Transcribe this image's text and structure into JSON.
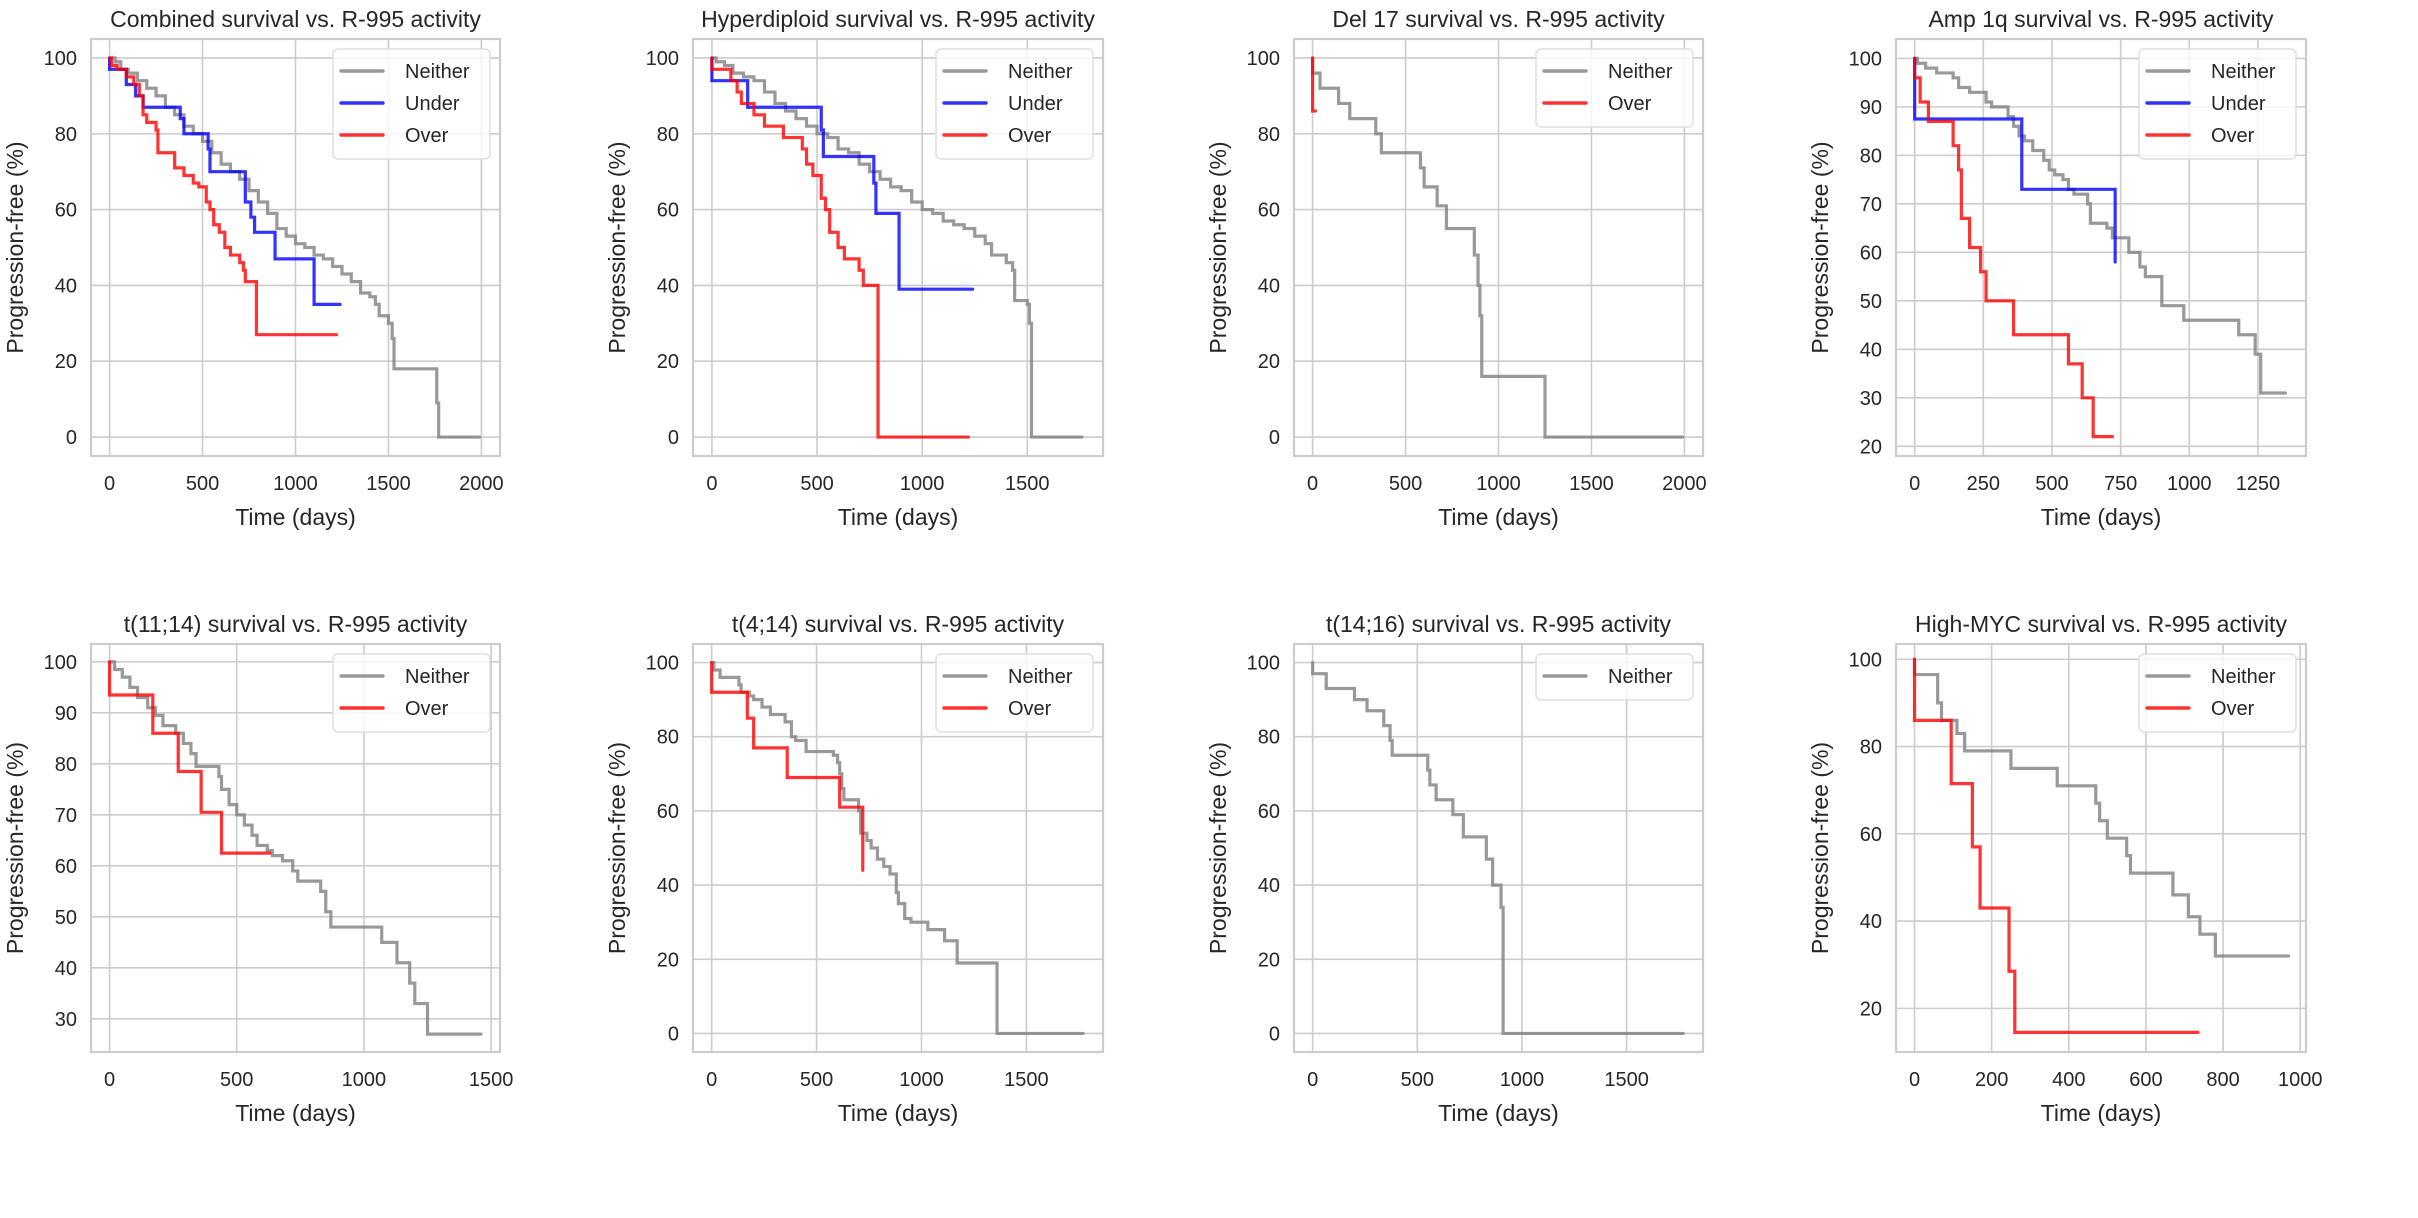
{
  "figure": {
    "series_colors": {
      "Neither": "#808080",
      "Under": "#0000ff",
      "Over": "#ff0000"
    }
  },
  "chart_data": [
    {
      "type": "line",
      "title": "Combined survival vs. R-995 activity",
      "xlabel": "Time (days)",
      "ylabel": "Progression-free (%)",
      "xlim": [
        -100,
        2100
      ],
      "ylim": [
        -5,
        105
      ],
      "xticks": [
        0,
        500,
        1000,
        1500,
        2000
      ],
      "yticks": [
        0,
        20,
        40,
        60,
        80,
        100
      ],
      "grid": true,
      "legend": "top-right",
      "series": [
        {
          "name": "Neither",
          "x": [
            0,
            30,
            60,
            100,
            150,
            200,
            250,
            300,
            350,
            400,
            450,
            500,
            550,
            600,
            650,
            700,
            750,
            800,
            850,
            900,
            950,
            1000,
            1050,
            1100,
            1150,
            1200,
            1250,
            1300,
            1350,
            1400,
            1430,
            1450,
            1500,
            1520,
            1530,
            1760,
            1770,
            1990
          ],
          "y": [
            100,
            99,
            97,
            96,
            94,
            92,
            90,
            87,
            85,
            82,
            80,
            78,
            75,
            72,
            70,
            68,
            65,
            62,
            59,
            55,
            53,
            51,
            50,
            48,
            47,
            45,
            43,
            41,
            38,
            37,
            35,
            32,
            30,
            26,
            18,
            9,
            0,
            0
          ]
        },
        {
          "name": "Under",
          "x": [
            0,
            0,
            90,
            140,
            180,
            380,
            400,
            530,
            540,
            730,
            760,
            780,
            890,
            1100,
            1240
          ],
          "y": [
            100,
            97,
            93,
            90,
            87,
            84,
            80,
            76,
            70,
            62,
            58,
            54,
            47,
            35,
            35
          ]
        },
        {
          "name": "Over",
          "x": [
            0,
            10,
            40,
            90,
            130,
            160,
            180,
            200,
            250,
            260,
            350,
            400,
            450,
            480,
            520,
            540,
            560,
            590,
            620,
            650,
            700,
            720,
            730,
            790,
            1220
          ],
          "y": [
            100,
            98,
            97,
            95,
            93,
            90,
            85,
            83,
            81,
            75,
            71,
            69,
            67,
            66,
            62,
            60,
            56,
            54,
            50,
            48,
            46,
            44,
            41,
            27,
            27
          ]
        }
      ]
    },
    {
      "type": "line",
      "title": "Hyperdiploid survival vs. R-995 activity",
      "xlabel": "Time (days)",
      "ylabel": "Progression-free (%)",
      "xlim": [
        -90,
        1860
      ],
      "ylim": [
        -5,
        105
      ],
      "xticks": [
        0,
        500,
        1000,
        1500
      ],
      "yticks": [
        0,
        20,
        40,
        60,
        80,
        100
      ],
      "grid": true,
      "legend": "top-right",
      "series": [
        {
          "name": "Neither",
          "x": [
            0,
            20,
            60,
            100,
            150,
            200,
            250,
            300,
            350,
            400,
            450,
            500,
            550,
            600,
            650,
            700,
            750,
            800,
            850,
            900,
            950,
            1000,
            1050,
            1100,
            1150,
            1200,
            1250,
            1300,
            1330,
            1400,
            1430,
            1440,
            1500,
            1510,
            1520,
            1760
          ],
          "y": [
            100,
            99,
            98,
            96,
            95,
            94,
            91,
            88,
            86,
            84,
            82,
            80,
            79,
            76,
            75,
            72,
            70,
            68,
            66,
            65,
            62,
            60,
            59,
            57,
            56,
            55,
            53,
            51,
            48,
            46,
            44,
            36,
            35,
            30,
            0,
            0
          ]
        },
        {
          "name": "Under",
          "x": [
            0,
            0,
            170,
            520,
            530,
            770,
            780,
            890,
            1240
          ],
          "y": [
            100,
            94,
            87,
            81,
            74,
            67,
            59,
            39,
            39
          ]
        },
        {
          "name": "Over",
          "x": [
            0,
            0,
            90,
            120,
            140,
            200,
            250,
            340,
            430,
            450,
            480,
            520,
            540,
            560,
            600,
            630,
            700,
            720,
            790,
            1220
          ],
          "y": [
            100,
            97,
            94,
            91,
            88,
            85,
            82,
            79,
            76,
            72,
            69,
            63,
            60,
            54,
            50,
            47,
            44,
            40,
            0,
            0
          ]
        }
      ]
    },
    {
      "type": "line",
      "title": "Del 17 survival vs. R-995 activity",
      "xlabel": "Time (days)",
      "ylabel": "Progression-free (%)",
      "xlim": [
        -100,
        2100
      ],
      "ylim": [
        -5,
        105
      ],
      "xticks": [
        0,
        500,
        1000,
        1500,
        2000
      ],
      "yticks": [
        0,
        20,
        40,
        60,
        80,
        100
      ],
      "grid": true,
      "legend": "top-right",
      "series": [
        {
          "name": "Neither",
          "x": [
            0,
            0,
            40,
            140,
            200,
            340,
            370,
            580,
            600,
            670,
            720,
            870,
            890,
            900,
            910,
            1250,
            1990
          ],
          "y": [
            100,
            96,
            92,
            88,
            84,
            80,
            75,
            71,
            66,
            61,
            55,
            48,
            40,
            32,
            16,
            0,
            0
          ]
        },
        {
          "name": "Over",
          "x": [
            0,
            0,
            15
          ],
          "y": [
            100,
            86,
            86
          ]
        }
      ]
    },
    {
      "type": "line",
      "title": "Amp 1q survival vs. R-995 activity",
      "xlabel": "Time (days)",
      "ylabel": "Progression-free (%)",
      "xlim": [
        -68,
        1425
      ],
      "ylim": [
        18,
        104
      ],
      "xticks": [
        0,
        250,
        500,
        750,
        1000,
        1250
      ],
      "yticks": [
        20,
        30,
        40,
        50,
        60,
        70,
        80,
        90,
        100
      ],
      "grid": true,
      "legend": "top-right",
      "series": [
        {
          "name": "Neither",
          "x": [
            0,
            10,
            40,
            80,
            140,
            160,
            200,
            260,
            280,
            340,
            360,
            380,
            400,
            430,
            470,
            490,
            510,
            540,
            560,
            580,
            630,
            640,
            700,
            720,
            780,
            820,
            840,
            900,
            980,
            1180,
            1240,
            1260,
            1350
          ],
          "y": [
            100,
            99,
            98,
            97,
            96,
            94,
            93,
            91,
            90,
            88,
            86,
            84,
            83,
            81,
            79,
            77,
            76,
            75,
            73,
            72,
            70,
            66,
            65,
            63,
            60,
            57,
            55,
            49,
            46,
            43,
            39,
            31,
            31
          ]
        },
        {
          "name": "Under",
          "x": [
            0,
            0,
            390,
            730
          ],
          "y": [
            100,
            87.5,
            73,
            58
          ]
        },
        {
          "name": "Over",
          "x": [
            0,
            0,
            20,
            50,
            140,
            160,
            170,
            200,
            240,
            260,
            360,
            560,
            610,
            650,
            720
          ],
          "y": [
            100,
            96,
            91,
            87,
            82,
            77,
            67,
            61,
            56,
            50,
            43,
            37,
            30,
            22,
            22
          ]
        }
      ]
    },
    {
      "type": "line",
      "title": "t(11;14) survival vs. R-995 activity",
      "xlabel": "Time (days)",
      "ylabel": "Progression-free (%)",
      "xlim": [
        -73,
        1535
      ],
      "ylim": [
        23.5,
        103.5
      ],
      "xticks": [
        0,
        500,
        1000,
        1500
      ],
      "yticks": [
        30,
        40,
        50,
        60,
        70,
        80,
        90,
        100
      ],
      "grid": true,
      "legend": "top-right",
      "series": [
        {
          "name": "Neither",
          "x": [
            0,
            20,
            50,
            80,
            110,
            150,
            180,
            210,
            260,
            290,
            320,
            340,
            430,
            440,
            470,
            500,
            530,
            560,
            580,
            620,
            640,
            680,
            720,
            740,
            830,
            850,
            870,
            1070,
            1130,
            1180,
            1200,
            1250,
            1460
          ],
          "y": [
            100,
            98.5,
            97,
            95,
            93,
            91,
            89.5,
            87.5,
            86,
            84,
            82,
            79.5,
            77.5,
            75,
            72,
            70,
            68,
            66,
            64,
            63,
            62,
            61,
            59,
            57,
            55,
            51,
            48,
            45,
            41,
            37,
            33,
            27,
            27
          ]
        },
        {
          "name": "Over",
          "x": [
            0,
            0,
            170,
            270,
            360,
            440,
            630
          ],
          "y": [
            100,
            93.5,
            86,
            78.5,
            70.5,
            62.5,
            62.5
          ]
        }
      ]
    },
    {
      "type": "line",
      "title": "t(4;14) survival vs. R-995 activity",
      "xlabel": "Time (days)",
      "ylabel": "Progression-free (%)",
      "xlim": [
        -89,
        1865
      ],
      "ylim": [
        -5,
        105
      ],
      "xticks": [
        0,
        500,
        1000,
        1500
      ],
      "yticks": [
        0,
        20,
        40,
        60,
        80,
        100
      ],
      "grid": true,
      "legend": "top-right",
      "series": [
        {
          "name": "Neither",
          "x": [
            0,
            10,
            40,
            130,
            140,
            180,
            200,
            240,
            280,
            350,
            380,
            400,
            450,
            580,
            600,
            610,
            620,
            630,
            700,
            710,
            740,
            760,
            790,
            820,
            850,
            880,
            890,
            920,
            950,
            1030,
            1110,
            1170,
            1360,
            1770
          ],
          "y": [
            100,
            98,
            96,
            94,
            92,
            91,
            90,
            88,
            86,
            84,
            80,
            79,
            76,
            75,
            73,
            70,
            66,
            63,
            60,
            54,
            52,
            50,
            47,
            45,
            43,
            38,
            35,
            31,
            30,
            28,
            25,
            19,
            0,
            0
          ]
        },
        {
          "name": "Over",
          "x": [
            0,
            0,
            170,
            200,
            360,
            610,
            720,
            720
          ],
          "y": [
            100,
            92,
            85,
            77,
            69,
            61,
            53,
            44
          ]
        }
      ]
    },
    {
      "type": "line",
      "title": "t(14;16) survival vs. R-995 activity",
      "xlabel": "Time (days)",
      "ylabel": "Progression-free (%)",
      "xlim": [
        -89,
        1865
      ],
      "ylim": [
        -5,
        105
      ],
      "xticks": [
        0,
        500,
        1000,
        1500
      ],
      "yticks": [
        0,
        20,
        40,
        60,
        80,
        100
      ],
      "grid": true,
      "legend": "top-right",
      "series": [
        {
          "name": "Neither",
          "x": [
            0,
            0,
            65,
            200,
            260,
            340,
            370,
            380,
            550,
            560,
            590,
            670,
            720,
            830,
            860,
            900,
            910,
            1770
          ],
          "y": [
            100,
            97,
            93,
            90,
            87,
            83,
            79,
            75,
            71,
            67,
            63,
            59,
            53,
            47,
            40,
            34,
            0,
            0
          ]
        }
      ]
    },
    {
      "type": "line",
      "title": "High-MYC survival vs. R-995 activity",
      "xlabel": "Time (days)",
      "ylabel": "Progression-free (%)",
      "xlim": [
        -48,
        1015
      ],
      "ylim": [
        10,
        103.5
      ],
      "xticks": [
        0,
        200,
        400,
        600,
        800,
        1000
      ],
      "yticks": [
        20,
        40,
        60,
        80,
        100
      ],
      "grid": true,
      "legend": "top-right",
      "series": [
        {
          "name": "Neither",
          "x": [
            0,
            0,
            60,
            70,
            110,
            130,
            250,
            370,
            470,
            480,
            500,
            550,
            560,
            670,
            710,
            740,
            780,
            970
          ],
          "y": [
            100,
            96.5,
            90,
            86,
            83,
            79,
            75,
            71,
            67,
            63,
            59,
            55,
            51,
            46,
            41,
            37,
            32,
            32
          ]
        },
        {
          "name": "Over",
          "x": [
            0,
            0,
            95,
            150,
            170,
            245,
            260,
            735
          ],
          "y": [
            100,
            86,
            71.5,
            57,
            43,
            28.5,
            14.5,
            14.5
          ]
        }
      ]
    }
  ]
}
